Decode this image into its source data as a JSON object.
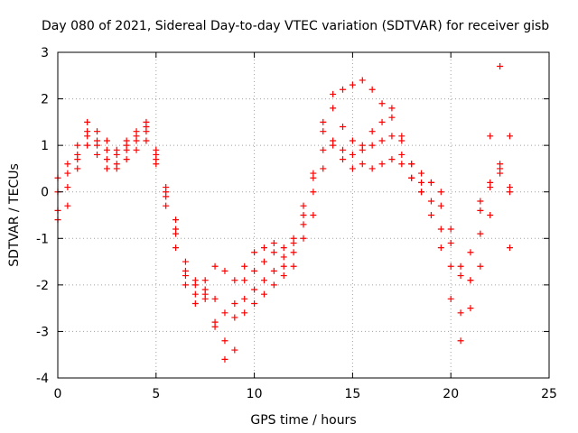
{
  "chart_data": {
    "type": "scatter",
    "title": "Day 080 of 2021, Sidereal Day-to-day VTEC variation (SDTVAR) for receiver gisb",
    "xlabel": "GPS time / hours",
    "ylabel": "SDTVAR / TECUs",
    "xlim": [
      0,
      25
    ],
    "ylim": [
      -4,
      3
    ],
    "xticks": [
      0,
      5,
      10,
      15,
      20,
      25
    ],
    "yticks": [
      -4,
      -3,
      -2,
      -1,
      0,
      1,
      2,
      3
    ],
    "grid": true,
    "marker": "plus",
    "series_color": "#ff0000",
    "series": [
      {
        "x": [
          0.0,
          0.5,
          1.0,
          1.5,
          2.0,
          2.5,
          3.0,
          3.5,
          4.0,
          4.5,
          5.0,
          5.5,
          6.0,
          6.5,
          7.0,
          7.5,
          8.0,
          8.5,
          9.0,
          9.5,
          10.0,
          10.5,
          11.0,
          11.5,
          12.0,
          12.5,
          13.0,
          13.5,
          14.0,
          14.5,
          15.0,
          15.5,
          16.0,
          16.5,
          17.0,
          17.5,
          18.0,
          18.5,
          19.0,
          19.5,
          20.0,
          20.5,
          21.0,
          21.5,
          22.0,
          22.5,
          23.0
        ],
        "y": [
          -0.6,
          -0.3,
          0.5,
          1.3,
          1.1,
          0.9,
          0.8,
          1.0,
          1.1,
          1.4,
          0.9,
          -0.1,
          -0.8,
          -1.8,
          -2.2,
          -2.3,
          -2.8,
          -3.2,
          -2.4,
          -1.9,
          -1.7,
          -1.5,
          -1.3,
          -1.4,
          -1.0,
          -0.3,
          0.4,
          1.3,
          2.1,
          2.2,
          2.3,
          2.4,
          2.2,
          1.9,
          1.8,
          1.2,
          0.6,
          0.2,
          -0.2,
          -0.8,
          -1.6,
          -2.6,
          -1.9,
          -0.9,
          1.2,
          2.7,
          1.2
        ]
      },
      {
        "x": [
          0.0,
          0.5,
          1.0,
          1.5,
          2.0,
          2.5,
          3.0,
          3.5,
          4.0,
          4.5,
          5.0,
          5.5,
          6.0,
          6.5,
          7.0,
          7.5,
          8.0,
          8.5,
          9.0,
          9.5,
          10.0,
          10.5,
          11.0,
          11.5,
          12.0,
          12.5,
          13.0,
          13.5,
          14.0,
          14.5,
          15.0,
          15.5,
          16.0,
          16.5,
          17.0,
          17.5,
          18.0,
          18.5,
          19.0,
          19.5,
          20.0,
          20.5,
          21.0,
          21.5,
          22.0,
          22.5,
          23.0
        ],
        "y": [
          0.3,
          0.6,
          1.0,
          1.5,
          1.3,
          1.1,
          0.9,
          1.1,
          1.3,
          1.5,
          0.8,
          0.1,
          -0.6,
          -1.5,
          -1.9,
          -2.1,
          -2.3,
          -2.6,
          -2.7,
          -2.3,
          -2.1,
          -1.9,
          -1.7,
          -1.6,
          -1.3,
          -0.7,
          0.0,
          0.9,
          1.1,
          0.9,
          0.8,
          0.9,
          1.0,
          1.1,
          1.2,
          0.8,
          0.6,
          0.4,
          0.2,
          -0.3,
          -1.1,
          -1.8,
          -1.3,
          -0.4,
          0.2,
          0.5,
          0.1
        ]
      },
      {
        "x": [
          0.0,
          0.5,
          1.0,
          1.5,
          2.0,
          2.5,
          3.0,
          3.5,
          4.0,
          4.5,
          5.0,
          5.5,
          6.0,
          6.5,
          7.0,
          7.5,
          8.0,
          8.5,
          9.0,
          9.5,
          10.0,
          10.5,
          11.0,
          11.5,
          12.0,
          12.5,
          13.0,
          13.5,
          14.0,
          14.5,
          15.0,
          15.5,
          16.0,
          16.5,
          17.0,
          17.5,
          18.0,
          18.5,
          19.0,
          19.5,
          20.0,
          20.5,
          21.0,
          21.5,
          22.0,
          22.5,
          23.0
        ],
        "y": [
          -0.4,
          0.1,
          0.7,
          1.0,
          0.8,
          0.5,
          0.6,
          0.9,
          1.2,
          1.3,
          0.6,
          -0.3,
          -1.2,
          -2.0,
          -2.4,
          -2.2,
          -2.9,
          -3.6,
          -3.4,
          -2.6,
          -2.4,
          -2.2,
          -2.0,
          -1.8,
          -1.6,
          -1.0,
          -0.5,
          0.5,
          1.0,
          0.7,
          0.5,
          0.6,
          0.5,
          0.6,
          0.7,
          0.6,
          0.3,
          0.0,
          -0.5,
          -1.2,
          -2.3,
          -3.2,
          -2.5,
          -1.6,
          -0.5,
          0.4,
          -1.2
        ]
      },
      {
        "x": [
          0.0,
          0.5,
          1.0,
          1.5,
          2.0,
          2.5,
          3.0,
          3.5,
          4.0,
          4.5,
          5.0,
          5.5,
          6.0,
          6.5,
          7.0,
          7.5,
          8.0,
          8.5,
          9.0,
          9.5,
          10.0,
          10.5,
          11.0,
          11.5,
          12.0,
          12.5,
          13.0,
          13.5,
          14.0,
          14.5,
          15.0,
          15.5,
          16.0,
          16.5,
          17.0,
          17.5,
          18.0,
          18.5,
          19.0,
          19.5,
          20.0,
          20.5,
          21.0,
          21.5,
          22.0,
          22.5,
          23.0
        ],
        "y": [
          0.0,
          0.4,
          0.8,
          1.2,
          1.0,
          0.7,
          0.5,
          0.7,
          0.9,
          1.1,
          0.7,
          0.0,
          -0.9,
          -1.7,
          -2.0,
          -1.9,
          -1.6,
          -1.7,
          -1.9,
          -1.6,
          -1.3,
          -1.2,
          -1.1,
          -1.2,
          -1.1,
          -0.5,
          0.3,
          1.5,
          1.8,
          1.4,
          1.1,
          1.0,
          1.3,
          1.5,
          1.6,
          1.1,
          0.3,
          0.0,
          0.2,
          0.0,
          -0.8,
          -1.6,
          -1.9,
          -0.2,
          0.1,
          0.6,
          0.0
        ]
      }
    ]
  }
}
